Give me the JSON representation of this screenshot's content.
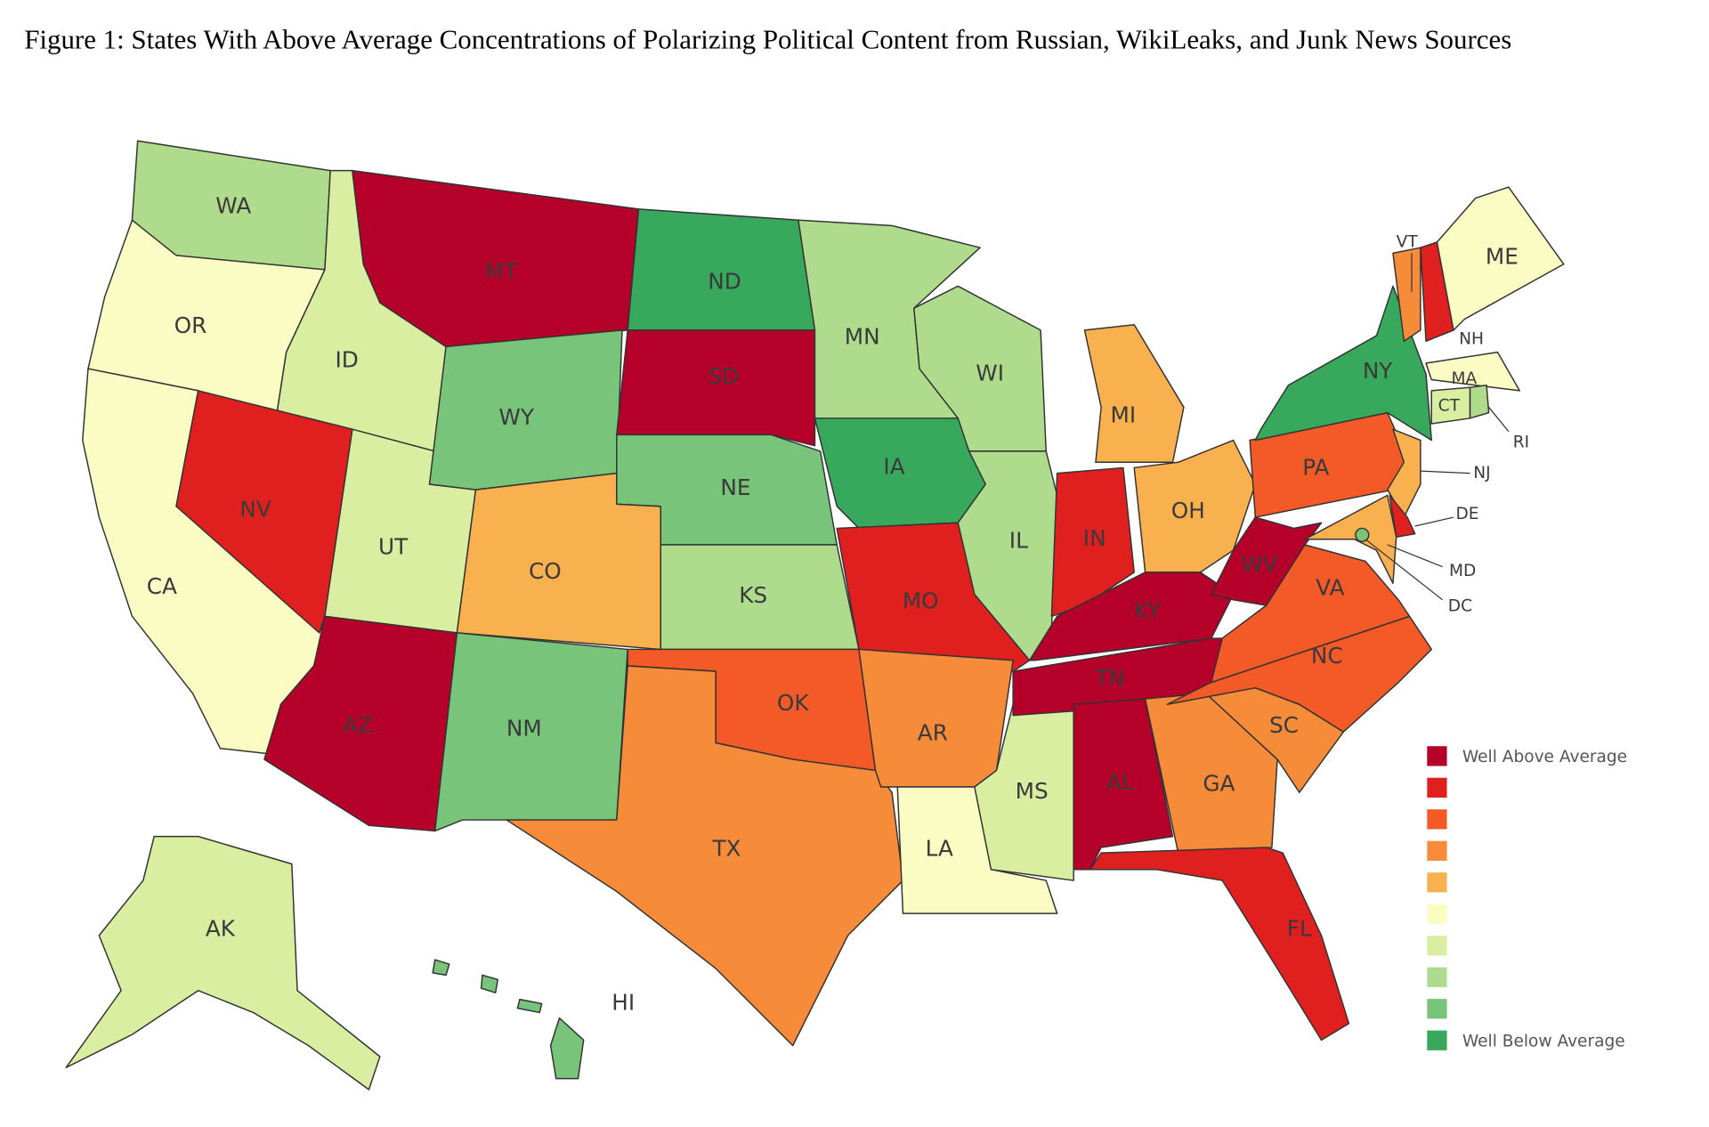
{
  "title": "Figure 1:  States With Above Average Concentrations of Polarizing Political Content from Russian, WikiLeaks, and Junk News Sources",
  "legend": {
    "items": [
      {
        "color": "#b5002a",
        "label": "Well Above Average"
      },
      {
        "color": "#e0201f"
      },
      {
        "color": "#f45a28"
      },
      {
        "color": "#f68b3a"
      },
      {
        "color": "#f9b04f"
      },
      {
        "color": "#fbfcc4"
      },
      {
        "color": "#d9eea0"
      },
      {
        "color": "#aedc8c"
      },
      {
        "color": "#78c47a"
      },
      {
        "color": "#37a85c",
        "label": "Well Below Average"
      }
    ]
  },
  "states": [
    {
      "label": "WA",
      "level": 8
    },
    {
      "label": "OR",
      "level": 6
    },
    {
      "label": "CA",
      "level": 6
    },
    {
      "label": "ID",
      "level": 7
    },
    {
      "label": "NV",
      "level": 2
    },
    {
      "label": "UT",
      "level": 7
    },
    {
      "label": "AZ",
      "level": 1
    },
    {
      "label": "MT",
      "level": 1
    },
    {
      "label": "WY",
      "level": 9
    },
    {
      "label": "CO",
      "level": 5
    },
    {
      "label": "NM",
      "level": 9
    },
    {
      "label": "ND",
      "level": 10
    },
    {
      "label": "SD",
      "level": 1
    },
    {
      "label": "NE",
      "level": 9
    },
    {
      "label": "KS",
      "level": 8
    },
    {
      "label": "OK",
      "level": 3
    },
    {
      "label": "TX",
      "level": 4
    },
    {
      "label": "MN",
      "level": 8
    },
    {
      "label": "IA",
      "level": 10
    },
    {
      "label": "MO",
      "level": 2
    },
    {
      "label": "AR",
      "level": 4
    },
    {
      "label": "LA",
      "level": 6
    },
    {
      "label": "WI",
      "level": 8
    },
    {
      "label": "IL",
      "level": 8
    },
    {
      "label": "MS",
      "level": 7
    },
    {
      "label": "MI",
      "level": 5
    },
    {
      "label": "IN",
      "level": 2
    },
    {
      "label": "OH",
      "level": 5
    },
    {
      "label": "KY",
      "level": 1
    },
    {
      "label": "TN",
      "level": 1
    },
    {
      "label": "AL",
      "level": 1
    },
    {
      "label": "GA",
      "level": 4
    },
    {
      "label": "FL",
      "level": 2
    },
    {
      "label": "SC",
      "level": 4
    },
    {
      "label": "NC",
      "level": 3
    },
    {
      "label": "VA",
      "level": 3
    },
    {
      "label": "WV",
      "level": 1
    },
    {
      "label": "PA",
      "level": 3
    },
    {
      "label": "NY",
      "level": 10
    },
    {
      "label": "VT",
      "level": 4
    },
    {
      "label": "NH",
      "level": 2
    },
    {
      "label": "ME",
      "level": 6
    },
    {
      "label": "MA",
      "level": 6
    },
    {
      "label": "CT",
      "level": 7
    },
    {
      "label": "RI",
      "level": 8
    },
    {
      "label": "NJ",
      "level": 5
    },
    {
      "label": "DE",
      "level": 2
    },
    {
      "label": "MD",
      "level": 5
    },
    {
      "label": "DC",
      "level": 9
    },
    {
      "label": "AK",
      "level": 7
    },
    {
      "label": "HI",
      "level": 9
    }
  ]
}
